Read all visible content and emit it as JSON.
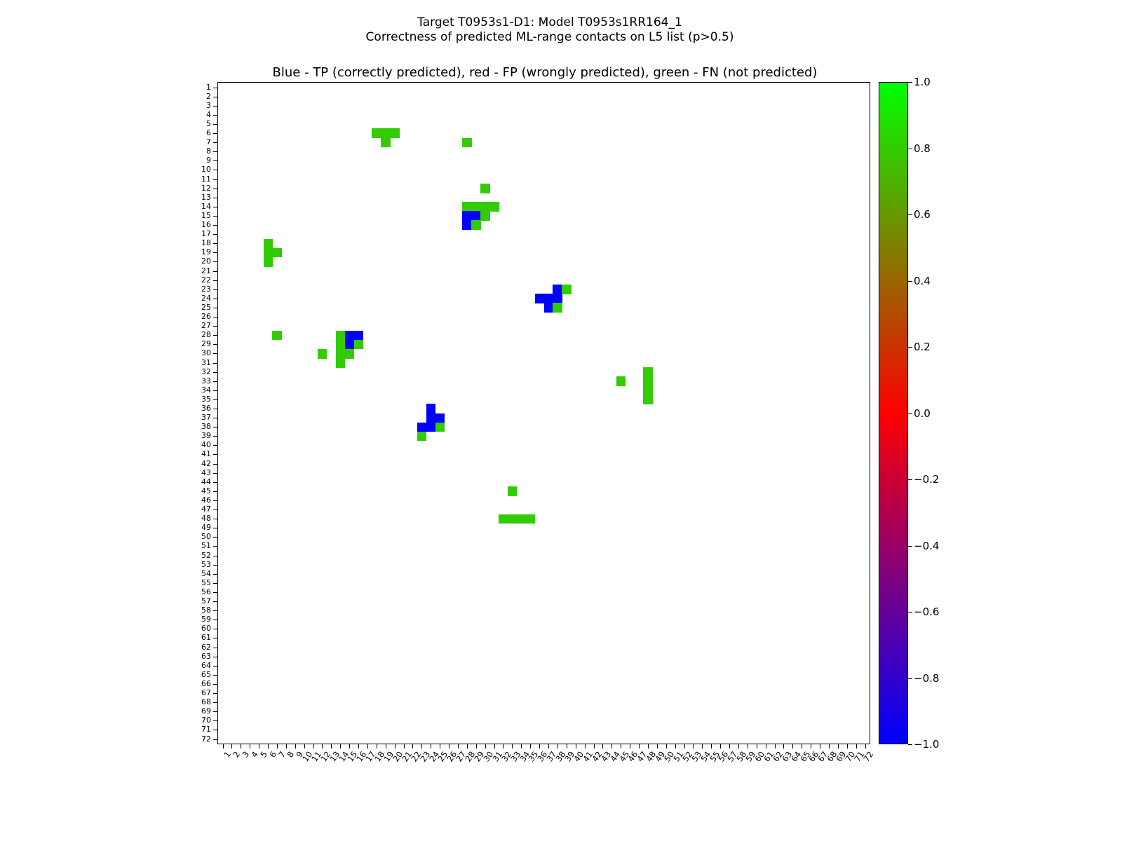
{
  "figure": {
    "title_line1": "Target T0953s1-D1: Model T0953s1RR164_1",
    "title_line2": "Correctness of predicted ML-range contacts on L5 list (p>0.5)",
    "axes_title": "Blue - TP (correctly predicted), red - FP (wrongly predicted), green - FN (not predicted)"
  },
  "chart_data": {
    "type": "heatmap",
    "title": "Blue - TP (correctly predicted), red - FP (wrongly predicted), green - FN (not predicted)",
    "x_range": [
      1,
      72
    ],
    "y_range": [
      1,
      72
    ],
    "y_axis_inverted": true,
    "grid": false,
    "x_ticks": [
      1,
      2,
      3,
      4,
      5,
      6,
      7,
      8,
      9,
      10,
      11,
      12,
      13,
      14,
      15,
      16,
      17,
      18,
      19,
      20,
      21,
      22,
      23,
      24,
      25,
      26,
      27,
      28,
      29,
      30,
      31,
      32,
      33,
      34,
      35,
      36,
      37,
      38,
      39,
      40,
      41,
      42,
      43,
      44,
      45,
      46,
      47,
      48,
      49,
      50,
      51,
      52,
      53,
      54,
      55,
      56,
      57,
      58,
      59,
      60,
      61,
      62,
      63,
      64,
      65,
      66,
      67,
      68,
      69,
      70,
      71,
      72
    ],
    "y_ticks": [
      1,
      2,
      3,
      4,
      5,
      6,
      7,
      8,
      9,
      10,
      11,
      12,
      13,
      14,
      15,
      16,
      17,
      18,
      19,
      20,
      21,
      22,
      23,
      24,
      25,
      26,
      27,
      28,
      29,
      30,
      31,
      32,
      33,
      34,
      35,
      36,
      37,
      38,
      39,
      40,
      41,
      42,
      43,
      44,
      45,
      46,
      47,
      48,
      49,
      50,
      51,
      52,
      53,
      54,
      55,
      56,
      57,
      58,
      59,
      60,
      61,
      62,
      63,
      64,
      65,
      66,
      67,
      68,
      69,
      70,
      71,
      72
    ],
    "legend": {
      "TP": {
        "label": "TP (correctly predicted)",
        "color": "#0000ff"
      },
      "FP": {
        "label": "FP (wrongly predicted)",
        "color": "#ff0000"
      },
      "FN": {
        "label": "FN (not predicted)",
        "color": "#33cc00"
      }
    },
    "colorbar": {
      "vmin": -1.0,
      "vmax": 1.0,
      "gradient": [
        "#00ff00",
        "#ff0000",
        "#0000ff"
      ],
      "ticks": [
        {
          "label": "1.0",
          "value": 1.0
        },
        {
          "label": "0.8",
          "value": 0.8
        },
        {
          "label": "0.6",
          "value": 0.6
        },
        {
          "label": "0.4",
          "value": 0.4
        },
        {
          "label": "0.2",
          "value": 0.2
        },
        {
          "label": "0.0",
          "value": 0.0
        },
        {
          "label": "−0.2",
          "value": -0.2
        },
        {
          "label": "−0.4",
          "value": -0.4
        },
        {
          "label": "−0.6",
          "value": -0.6
        },
        {
          "label": "−0.8",
          "value": -0.8
        },
        {
          "label": "−1.0",
          "value": -1.0
        }
      ]
    },
    "cells_format": [
      "row_y",
      "col_x",
      "class"
    ],
    "cells": [
      [
        6,
        18,
        "FN"
      ],
      [
        6,
        19,
        "FN"
      ],
      [
        6,
        20,
        "FN"
      ],
      [
        7,
        19,
        "FN"
      ],
      [
        7,
        28,
        "FN"
      ],
      [
        12,
        30,
        "FN"
      ],
      [
        14,
        28,
        "FN"
      ],
      [
        14,
        29,
        "FN"
      ],
      [
        14,
        30,
        "FN"
      ],
      [
        14,
        31,
        "FN"
      ],
      [
        15,
        28,
        "TP"
      ],
      [
        15,
        29,
        "TP"
      ],
      [
        15,
        30,
        "FN"
      ],
      [
        16,
        28,
        "TP"
      ],
      [
        16,
        29,
        "FN"
      ],
      [
        18,
        6,
        "FN"
      ],
      [
        19,
        6,
        "FN"
      ],
      [
        19,
        7,
        "FN"
      ],
      [
        20,
        6,
        "FN"
      ],
      [
        23,
        38,
        "TP"
      ],
      [
        23,
        39,
        "FN"
      ],
      [
        24,
        36,
        "TP"
      ],
      [
        24,
        37,
        "TP"
      ],
      [
        24,
        38,
        "TP"
      ],
      [
        25,
        37,
        "TP"
      ],
      [
        25,
        38,
        "FN"
      ],
      [
        28,
        7,
        "FN"
      ],
      [
        28,
        14,
        "FN"
      ],
      [
        28,
        15,
        "TP"
      ],
      [
        28,
        16,
        "TP"
      ],
      [
        29,
        14,
        "FN"
      ],
      [
        29,
        15,
        "TP"
      ],
      [
        29,
        16,
        "FN"
      ],
      [
        30,
        12,
        "FN"
      ],
      [
        30,
        14,
        "FN"
      ],
      [
        30,
        15,
        "FN"
      ],
      [
        31,
        14,
        "FN"
      ],
      [
        32,
        48,
        "FN"
      ],
      [
        33,
        48,
        "FN"
      ],
      [
        34,
        48,
        "FN"
      ],
      [
        35,
        48,
        "FN"
      ],
      [
        33,
        45,
        "FN"
      ],
      [
        36,
        24,
        "TP"
      ],
      [
        37,
        24,
        "TP"
      ],
      [
        37,
        25,
        "TP"
      ],
      [
        38,
        23,
        "TP"
      ],
      [
        38,
        24,
        "TP"
      ],
      [
        38,
        25,
        "FN"
      ],
      [
        39,
        23,
        "FN"
      ],
      [
        45,
        33,
        "FN"
      ],
      [
        48,
        32,
        "FN"
      ],
      [
        48,
        33,
        "FN"
      ],
      [
        48,
        34,
        "FN"
      ],
      [
        48,
        35,
        "FN"
      ]
    ]
  }
}
